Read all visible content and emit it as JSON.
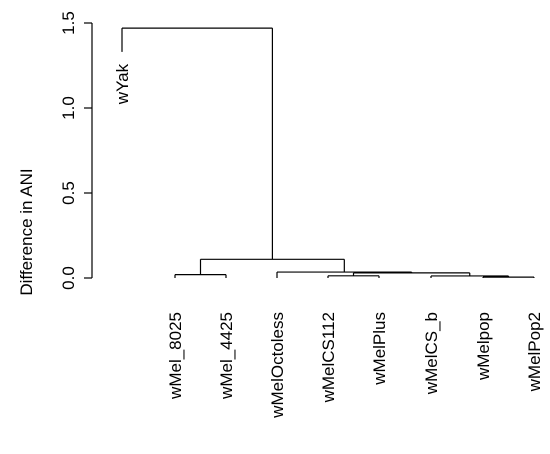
{
  "chart_data": {
    "type": "dendrogram",
    "ylabel": "Difference in ANI",
    "ylim": [
      0,
      1.5
    ],
    "yticks": [
      {
        "value": 0.0,
        "label": "0.0"
      },
      {
        "value": 0.5,
        "label": "0.5"
      },
      {
        "value": 1.0,
        "label": "1.0"
      },
      {
        "value": 1.5,
        "label": "1.5"
      }
    ],
    "leaves": [
      "wYak",
      "wMel_8025",
      "wMel_4425",
      "wMelOctoless",
      "wMelCS112",
      "wMelPlus",
      "wMelCS_b",
      "wMelpop",
      "wMelPop2"
    ],
    "merges": [
      {
        "a": "wMelpop",
        "b": "wMelPop2",
        "height": 0.005
      },
      {
        "a": "wMelCS_b",
        "b": "merge-1",
        "height": 0.012
      },
      {
        "a": "wMelCS112",
        "b": "wMelPlus",
        "height": 0.013
      },
      {
        "a": "merge-3",
        "b": "merge-2",
        "height": 0.03
      },
      {
        "a": "wMelOctoless",
        "b": "merge-4",
        "height": 0.035
      },
      {
        "a": "wMel_8025",
        "b": "wMel_4425",
        "height": 0.02
      },
      {
        "a": "merge-6",
        "b": "merge-5",
        "height": 0.11
      },
      {
        "a": "wYak",
        "b": "merge-7",
        "height": 1.47
      }
    ],
    "leaf_heights": {
      "wYak": 1.33
    }
  }
}
